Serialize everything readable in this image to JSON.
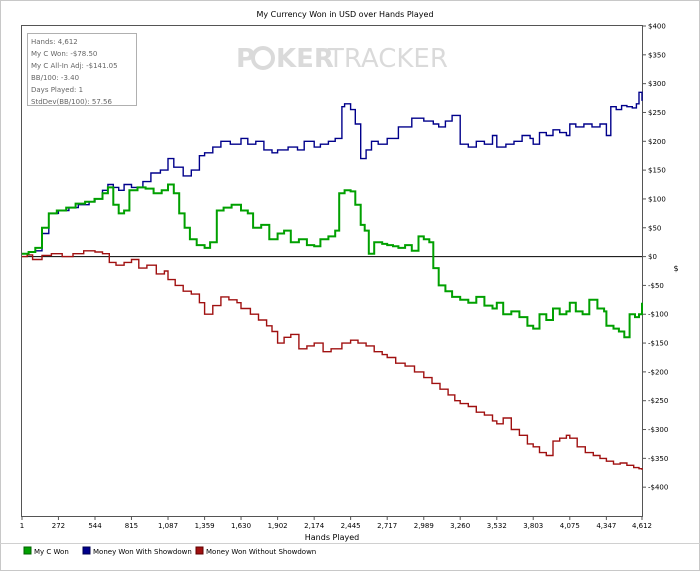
{
  "watermark": {
    "left": "P",
    "chip": "O",
    "mid": "KER",
    "right": "TRACKER"
  },
  "stats": [
    {
      "label": "Hands",
      "value": "4,612"
    },
    {
      "label": "My C Won",
      "value": "-$78.50"
    },
    {
      "label": "My C All-In Adj",
      "value": "-$141.05"
    },
    {
      "label": "BB/100",
      "value": "-3.40"
    },
    {
      "label": "Days Played",
      "value": "1"
    },
    {
      "label": "StdDev(BB/100)",
      "value": "57.56"
    }
  ],
  "chart_data": {
    "type": "line",
    "title": "My Currency Won in USD over Hands Played",
    "xlabel": "Hands Played",
    "ylabel": "$",
    "xlim": [
      1,
      4612
    ],
    "ylim": [
      -450,
      400
    ],
    "x_ticks": [
      1,
      272,
      544,
      815,
      1087,
      1359,
      1630,
      1902,
      2174,
      2445,
      2717,
      2989,
      3260,
      3532,
      3803,
      4075,
      4347,
      4612
    ],
    "x_tick_labels": [
      "1",
      "272",
      "544",
      "815",
      "1,087",
      "1,359",
      "1,630",
      "1,902",
      "2,174",
      "2,445",
      "2,717",
      "2,989",
      "3,260",
      "3,532",
      "3,803",
      "4,075",
      "4,347",
      "4,612"
    ],
    "y_ticks": [
      400,
      350,
      300,
      250,
      200,
      150,
      100,
      50,
      0,
      -50,
      -100,
      -150,
      -200,
      -250,
      -300,
      -350,
      -400
    ],
    "y_tick_labels": [
      "$400",
      "$350",
      "$300",
      "$250",
      "$200",
      "$150",
      "$100",
      "$50",
      "$0",
      "-$50",
      "-$100",
      "-$150",
      "-$200",
      "-$250",
      "-$300",
      "-$350",
      "-$400"
    ],
    "y_axis_side": "right",
    "grid": false,
    "zero_line": true,
    "legend_position": "bottom",
    "series": [
      {
        "name": "My C Won",
        "color": "#00a000",
        "x": [
          1,
          50,
          100,
          150,
          200,
          260,
          330,
          400,
          470,
          540,
          600,
          640,
          680,
          720,
          760,
          800,
          860,
          920,
          980,
          1040,
          1087,
          1130,
          1170,
          1210,
          1250,
          1300,
          1359,
          1400,
          1450,
          1500,
          1560,
          1630,
          1680,
          1720,
          1780,
          1840,
          1902,
          1950,
          2000,
          2060,
          2120,
          2174,
          2220,
          2280,
          2330,
          2360,
          2400,
          2445,
          2480,
          2520,
          2550,
          2580,
          2620,
          2650,
          2680,
          2717,
          2760,
          2800,
          2850,
          2900,
          2950,
          2989,
          3030,
          3060,
          3100,
          3150,
          3200,
          3260,
          3320,
          3380,
          3440,
          3500,
          3532,
          3580,
          3640,
          3700,
          3760,
          3803,
          3850,
          3900,
          3950,
          4000,
          4050,
          4075,
          4120,
          4170,
          4220,
          4280,
          4330,
          4347,
          4400,
          4440,
          4480,
          4520,
          4560,
          4590,
          4612
        ],
        "y": [
          5,
          8,
          15,
          50,
          75,
          80,
          85,
          92,
          95,
          100,
          110,
          120,
          90,
          75,
          80,
          115,
          120,
          118,
          110,
          115,
          125,
          110,
          75,
          50,
          30,
          20,
          15,
          25,
          80,
          85,
          90,
          80,
          75,
          50,
          55,
          30,
          40,
          45,
          25,
          30,
          20,
          18,
          30,
          35,
          45,
          110,
          115,
          113,
          90,
          55,
          45,
          5,
          25,
          25,
          22,
          20,
          18,
          15,
          20,
          10,
          35,
          30,
          25,
          -20,
          -50,
          -60,
          -70,
          -75,
          -80,
          -70,
          -85,
          -90,
          -80,
          -100,
          -95,
          -105,
          -120,
          -125,
          -100,
          -110,
          -90,
          -100,
          -95,
          -80,
          -95,
          -100,
          -75,
          -90,
          -95,
          -120,
          -125,
          -130,
          -140,
          -100,
          -105,
          -100,
          -80
        ]
      },
      {
        "name": "Money Won With Showdown",
        "color": "#00008b",
        "x": [
          1,
          50,
          100,
          150,
          200,
          272,
          350,
          420,
          500,
          544,
          600,
          640,
          680,
          720,
          760,
          815,
          900,
          960,
          1030,
          1087,
          1130,
          1200,
          1260,
          1320,
          1359,
          1420,
          1480,
          1550,
          1630,
          1680,
          1740,
          1800,
          1860,
          1902,
          1980,
          2050,
          2100,
          2174,
          2220,
          2280,
          2330,
          2380,
          2400,
          2445,
          2480,
          2520,
          2560,
          2600,
          2650,
          2717,
          2800,
          2900,
          2989,
          3060,
          3100,
          3150,
          3200,
          3260,
          3320,
          3380,
          3440,
          3500,
          3532,
          3600,
          3660,
          3720,
          3780,
          3803,
          3850,
          3900,
          3950,
          4000,
          4050,
          4075,
          4120,
          4180,
          4240,
          4300,
          4347,
          4380,
          4420,
          4460,
          4500,
          4540,
          4570,
          4590,
          4612
        ],
        "y": [
          5,
          8,
          10,
          40,
          75,
          80,
          85,
          90,
          95,
          100,
          115,
          125,
          120,
          115,
          125,
          120,
          130,
          145,
          150,
          170,
          155,
          140,
          150,
          175,
          180,
          190,
          200,
          195,
          205,
          195,
          200,
          185,
          180,
          185,
          190,
          185,
          200,
          190,
          195,
          200,
          205,
          260,
          265,
          255,
          230,
          170,
          185,
          200,
          195,
          205,
          225,
          240,
          235,
          230,
          225,
          235,
          245,
          195,
          190,
          200,
          195,
          210,
          190,
          195,
          200,
          210,
          205,
          195,
          215,
          210,
          220,
          215,
          210,
          230,
          225,
          230,
          225,
          230,
          210,
          260,
          255,
          262,
          260,
          258,
          265,
          285,
          270
        ]
      },
      {
        "name": "Money Won Without Showdown",
        "color": "#a01010",
        "x": [
          1,
          40,
          80,
          150,
          220,
          300,
          380,
          460,
          544,
          600,
          650,
          700,
          760,
          815,
          870,
          930,
          1000,
          1060,
          1087,
          1140,
          1200,
          1260,
          1320,
          1359,
          1420,
          1480,
          1540,
          1600,
          1630,
          1700,
          1760,
          1820,
          1860,
          1902,
          1950,
          2000,
          2060,
          2120,
          2174,
          2240,
          2300,
          2380,
          2445,
          2500,
          2560,
          2620,
          2680,
          2717,
          2780,
          2850,
          2920,
          2989,
          3050,
          3110,
          3170,
          3220,
          3260,
          3320,
          3380,
          3440,
          3500,
          3532,
          3580,
          3640,
          3700,
          3760,
          3803,
          3850,
          3900,
          3950,
          4000,
          4050,
          4075,
          4130,
          4190,
          4250,
          4300,
          4347,
          4400,
          4450,
          4500,
          4550,
          4590,
          4612
        ],
        "y": [
          0,
          3,
          -5,
          2,
          5,
          0,
          5,
          10,
          8,
          5,
          -10,
          -15,
          -10,
          -5,
          -20,
          -15,
          -30,
          -25,
          -40,
          -50,
          -60,
          -65,
          -80,
          -100,
          -85,
          -70,
          -75,
          -80,
          -90,
          -100,
          -110,
          -120,
          -130,
          -150,
          -140,
          -135,
          -160,
          -155,
          -150,
          -165,
          -160,
          -150,
          -145,
          -150,
          -155,
          -165,
          -170,
          -175,
          -185,
          -190,
          -200,
          -210,
          -220,
          -230,
          -240,
          -250,
          -255,
          -260,
          -270,
          -275,
          -285,
          -290,
          -280,
          -300,
          -310,
          -325,
          -330,
          -340,
          -345,
          -320,
          -315,
          -310,
          -315,
          -330,
          -340,
          -345,
          -350,
          -355,
          -360,
          -358,
          -362,
          -366,
          -368,
          -370
        ]
      }
    ]
  }
}
